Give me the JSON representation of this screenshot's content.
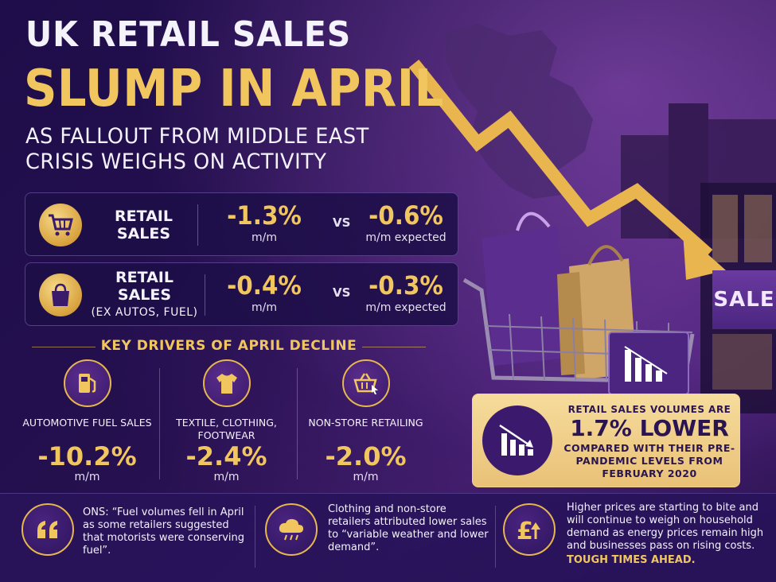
{
  "header": {
    "title_line1": "UK RETAIL SALES",
    "title_line2": "SLUMP IN APRIL",
    "subtitle": "AS FALLOUT FROM MIDDLE EAST CRISIS WEIGHS ON ACTIVITY"
  },
  "stats": [
    {
      "label": "RETAIL SALES",
      "sublabel": "",
      "icon": "shopping-cart-icon",
      "actual": "-1.3%",
      "actual_unit": "m/m",
      "vs": "VS",
      "expected": "-0.6%",
      "expected_unit": "m/m expected"
    },
    {
      "label": "RETAIL SALES",
      "sublabel": "(EX AUTOS, FUEL)",
      "icon": "shopping-bag-icon",
      "actual": "-0.4%",
      "actual_unit": "m/m",
      "vs": "VS",
      "expected": "-0.3%",
      "expected_unit": "m/m expected"
    }
  ],
  "drivers": {
    "heading": "KEY DRIVERS OF APRIL DECLINE",
    "items": [
      {
        "icon": "fuel-pump-icon",
        "label": "AUTOMOTIVE FUEL SALES",
        "value": "-10.2%",
        "unit": "m/m"
      },
      {
        "icon": "t-shirt-icon",
        "label": "TEXTILE, CLOTHING, FOOTWEAR",
        "value": "-2.4%",
        "unit": "m/m"
      },
      {
        "icon": "basket-cursor-icon",
        "label": "NON-STORE RETAILING",
        "value": "-2.0%",
        "unit": "m/m"
      }
    ]
  },
  "callout": {
    "icon": "declining-bar-chart-icon",
    "pre": "RETAIL SALES VOLUMES ARE",
    "big": "1.7% LOWER",
    "post": "COMPARED WITH THEIR PRE-PANDEMIC LEVELS FROM FEBRUARY 2020"
  },
  "store_sign": "SALE",
  "bottom": [
    {
      "icon": "quote-icon",
      "text": "ONS: “Fuel volumes fell in April as some retailers suggested that motorists were conserving fuel”.",
      "highlight": ""
    },
    {
      "icon": "rain-cloud-icon",
      "text": "Clothing and non-store retailers attributed lower sales to “variable weather and lower demand”.",
      "highlight": ""
    },
    {
      "icon": "pound-rising-icon",
      "text": "Higher prices are starting to bite and will continue to weigh on household demand as energy prices remain high and businesses pass on rising costs.",
      "highlight": "TOUGH TIMES AHEAD."
    }
  ],
  "colors": {
    "gold": "#f1c65e",
    "background": "#1e0d4a",
    "card": "#1c0e48",
    "callout": "#f2d18a"
  }
}
